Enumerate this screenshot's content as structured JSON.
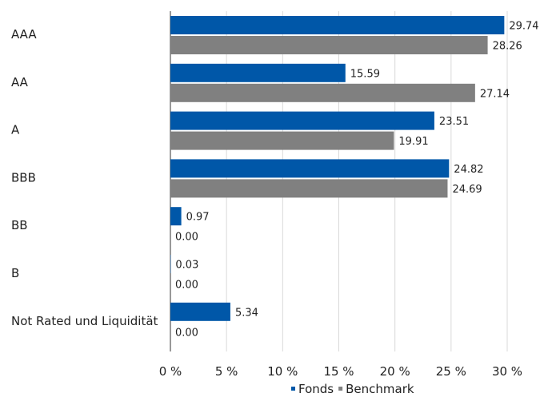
{
  "chart_data": {
    "type": "bar",
    "orientation": "horizontal",
    "categories": [
      "AAA",
      "AA",
      "A",
      "BBB",
      "BB",
      "B",
      "Not Rated und Liquidität"
    ],
    "series": [
      {
        "name": "Fonds",
        "color": "#0057a8",
        "values": [
          29.74,
          15.59,
          23.51,
          24.82,
          0.97,
          0.03,
          5.34
        ]
      },
      {
        "name": "Benchmark",
        "color": "#808080",
        "values": [
          28.26,
          27.14,
          19.91,
          24.69,
          0.0,
          0.0,
          0.0
        ]
      }
    ],
    "value_labels": {
      "Fonds": [
        "29.74",
        "15.59",
        "23.51",
        "24.82",
        "0.97",
        "0.03",
        "5.34"
      ],
      "Benchmark": [
        "28.26",
        "27.14",
        "19.91",
        "24.69",
        "0.00",
        "0.00",
        "0.00"
      ]
    },
    "xlim": [
      0,
      30
    ],
    "x_ticks": [
      "0 %",
      "5 %",
      "10 %",
      "15 %",
      "20 %",
      "25 %",
      "30 %"
    ],
    "grid": "vertical",
    "legend": {
      "position": "bottom",
      "entries": [
        "Fonds",
        "Benchmark"
      ]
    }
  }
}
